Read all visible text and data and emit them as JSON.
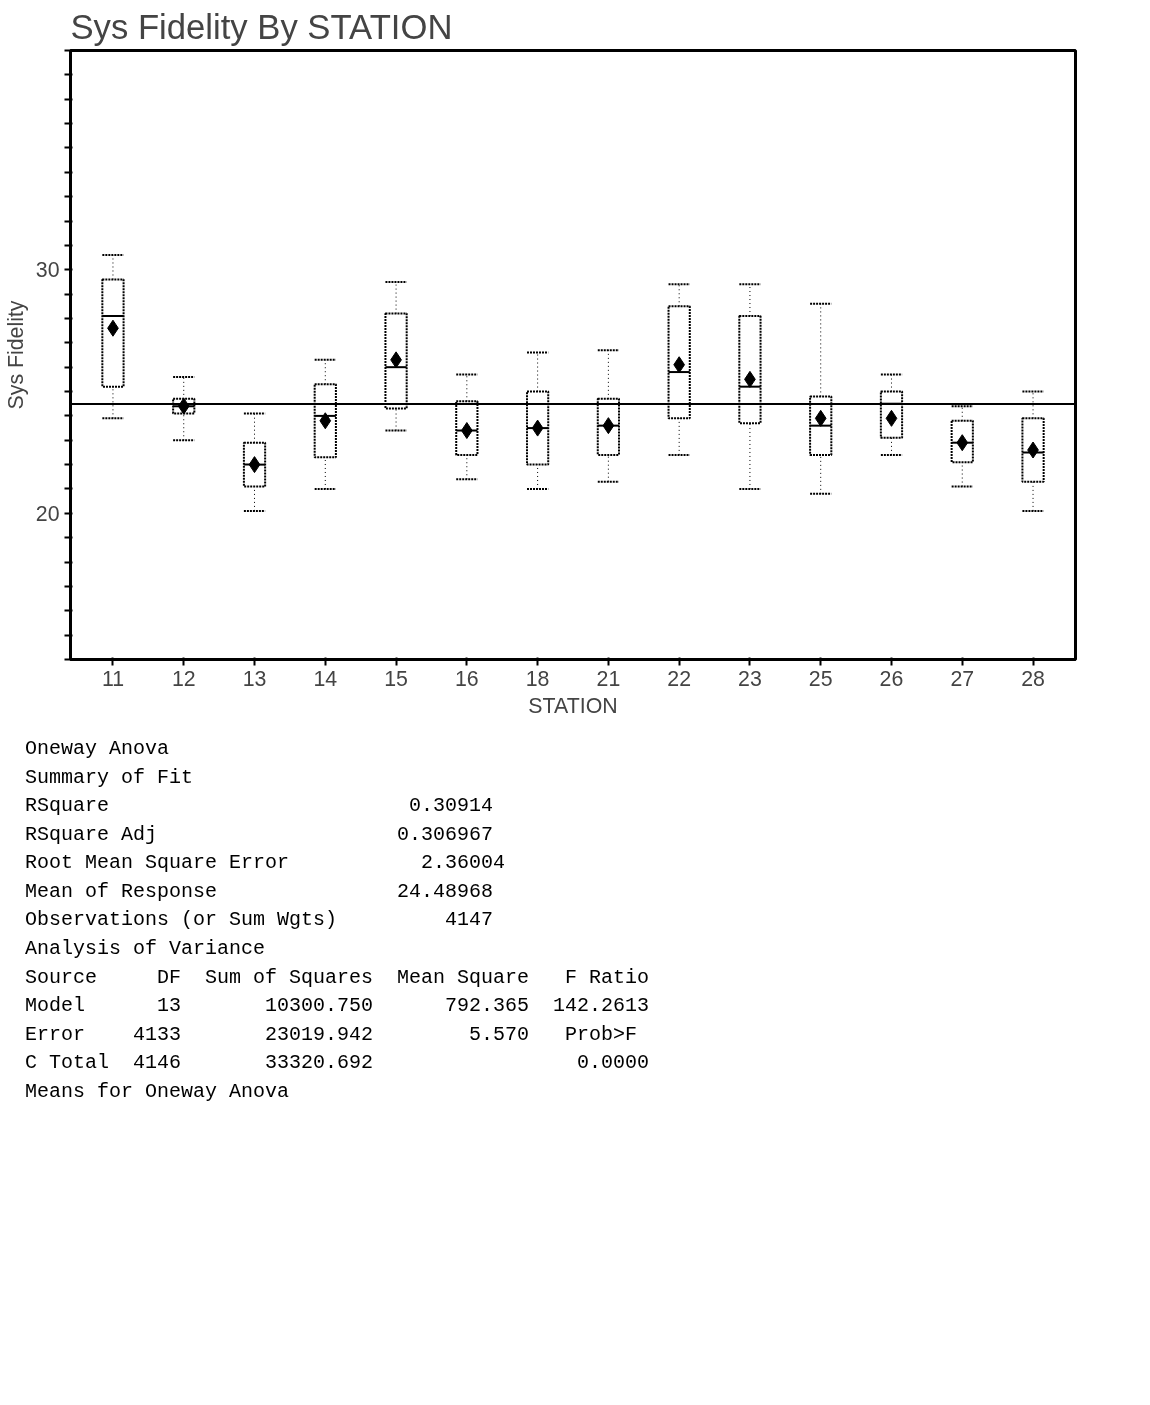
{
  "chart_data": {
    "type": "box",
    "title": "Sys Fidelity By STATION",
    "xlabel": "STATION",
    "ylabel": "Sys Fidelity",
    "categories": [
      "11",
      "12",
      "13",
      "14",
      "15",
      "16",
      "18",
      "21",
      "22",
      "23",
      "25",
      "26",
      "27",
      "28"
    ],
    "boxes": [
      {
        "low": 23.9,
        "q1": 25.2,
        "median": 28.1,
        "q3": 29.6,
        "high": 30.6,
        "mean": 27.6
      },
      {
        "low": 23.0,
        "q1": 24.1,
        "median": 24.4,
        "q3": 24.7,
        "high": 25.6,
        "mean": 24.4
      },
      {
        "low": 20.1,
        "q1": 21.1,
        "median": 22.0,
        "q3": 22.9,
        "high": 24.1,
        "mean": 22.0
      },
      {
        "low": 21.0,
        "q1": 22.3,
        "median": 24.0,
        "q3": 25.3,
        "high": 26.3,
        "mean": 23.8
      },
      {
        "low": 23.4,
        "q1": 24.3,
        "median": 26.0,
        "q3": 28.2,
        "high": 29.5,
        "mean": 26.3
      },
      {
        "low": 21.4,
        "q1": 22.4,
        "median": 23.4,
        "q3": 24.6,
        "high": 25.7,
        "mean": 23.4
      },
      {
        "low": 21.0,
        "q1": 22.0,
        "median": 23.5,
        "q3": 25.0,
        "high": 26.6,
        "mean": 23.5
      },
      {
        "low": 21.3,
        "q1": 22.4,
        "median": 23.6,
        "q3": 24.7,
        "high": 26.7,
        "mean": 23.6
      },
      {
        "low": 22.4,
        "q1": 23.9,
        "median": 25.8,
        "q3": 28.5,
        "high": 29.4,
        "mean": 26.1
      },
      {
        "low": 21.0,
        "q1": 23.7,
        "median": 25.2,
        "q3": 28.1,
        "high": 29.4,
        "mean": 25.5
      },
      {
        "low": 20.8,
        "q1": 22.4,
        "median": 23.6,
        "q3": 24.8,
        "high": 28.6,
        "mean": 23.9
      },
      {
        "low": 22.4,
        "q1": 23.1,
        "median": 24.5,
        "q3": 25.0,
        "high": 25.7,
        "mean": 23.9
      },
      {
        "low": 21.1,
        "q1": 22.1,
        "median": 22.9,
        "q3": 23.8,
        "high": 24.4,
        "mean": 22.9
      },
      {
        "low": 20.1,
        "q1": 21.3,
        "median": 22.5,
        "q3": 23.9,
        "high": 25.0,
        "mean": 22.6
      }
    ],
    "ylim": [
      14,
      39
    ],
    "yticks": [
      {
        "value": 14,
        "label": null
      },
      {
        "value": 15,
        "label": null
      },
      {
        "value": 16,
        "label": null
      },
      {
        "value": 17,
        "label": null
      },
      {
        "value": 18,
        "label": null
      },
      {
        "value": 19,
        "label": null
      },
      20,
      {
        "value": 21,
        "label": null
      },
      {
        "value": 22,
        "label": null
      },
      {
        "value": 23,
        "label": null
      },
      {
        "value": 24,
        "label": null
      },
      {
        "value": 25,
        "label": null
      },
      {
        "value": 26,
        "label": null
      },
      {
        "value": 27,
        "label": null
      },
      {
        "value": 28,
        "label": null
      },
      {
        "value": 29,
        "label": null
      },
      30,
      {
        "value": 31,
        "label": null
      },
      {
        "value": 32,
        "label": null
      },
      {
        "value": 33,
        "label": null
      },
      {
        "value": 34,
        "label": null
      },
      {
        "value": 35,
        "label": null
      },
      {
        "value": 36,
        "label": null
      },
      {
        "value": 37,
        "label": null
      },
      {
        "value": 38,
        "label": null
      },
      {
        "value": 39,
        "label": null
      }
    ],
    "ref_lines": [
      {
        "axis": "y",
        "value": 24.48968,
        "color": "#000000"
      }
    ],
    "marker": "diamond",
    "grid": false,
    "annotations": [
      "Oneway Anova",
      "Summary of Fit",
      "RSquare                         0.30914",
      "RSquare Adj                    0.306967",
      "Root Mean Square Error           2.36004",
      "Mean of Response               24.48968",
      "Observations (or Sum Wgts)         4147",
      "Analysis of Variance",
      "Source     DF  Sum of Squares  Mean Square   F Ratio",
      "Model      13       10300.750      792.365  142.2613",
      "Error    4133       23019.942        5.570   Prob>F",
      "C Total  4146       33320.692                 0.0000",
      "Means for Oneway Anova"
    ]
  }
}
